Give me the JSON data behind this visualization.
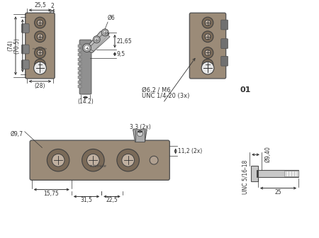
{
  "bg_color": "#ffffff",
  "line_color": "#000000",
  "dim_color": "#333333",
  "body_color": "#9B8B78",
  "body_edge": "#555555",
  "circle_outer": "#7A6A58",
  "circle_inner": "#C0B0A0",
  "circle_white": "#E8E8E8",
  "mech_gray": "#B0B0B0",
  "mech_light": "#D0D0D0",
  "strip_color": "#707070",
  "pin_color": "#C8C8C8",
  "annotations": {
    "dim_25_5": "25,5",
    "dim_2": "2",
    "dim_74": "(74)",
    "dim_70_5": "(70.5)",
    "dim_28": "(28)",
    "dim_phi6": "Ø6",
    "dim_21_65": "21,65",
    "dim_9_5": "9,5",
    "dim_14_2": "(14.2)",
    "dim_phi6_2_M6": "Ø6,2 / M6",
    "dim_UNC_1_4_20": "UNC 1/4-20 (3x)",
    "dim_01": "01",
    "dim_phi9_7": "Ø9,7",
    "dim_3_3_2x": "3,3 (2x)",
    "dim_11_2_2x": "11,2 (2x)",
    "dim_15_75": "15,75",
    "dim_31_5": "31,5",
    "dim_22_5": "22,5",
    "dim_phi9_40": "Ø9,40",
    "dim_25": "25",
    "dim_UNC_5_16_18": "UNC 5/16-18"
  }
}
